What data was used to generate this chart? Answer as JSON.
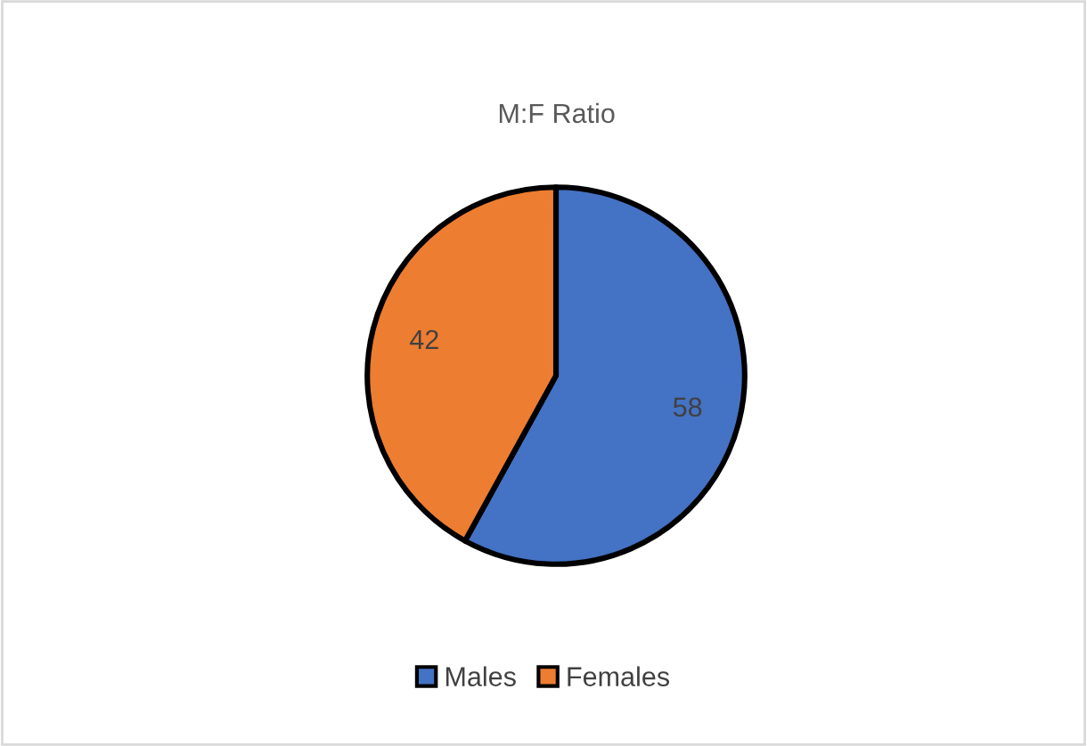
{
  "chart_data": {
    "type": "pie",
    "title": "M:F Ratio",
    "categories": [
      "Males",
      "Females"
    ],
    "values": [
      58,
      42
    ],
    "colors": [
      "#4472c4",
      "#ed7d31"
    ],
    "data_labels": true,
    "legend": "bottom"
  }
}
